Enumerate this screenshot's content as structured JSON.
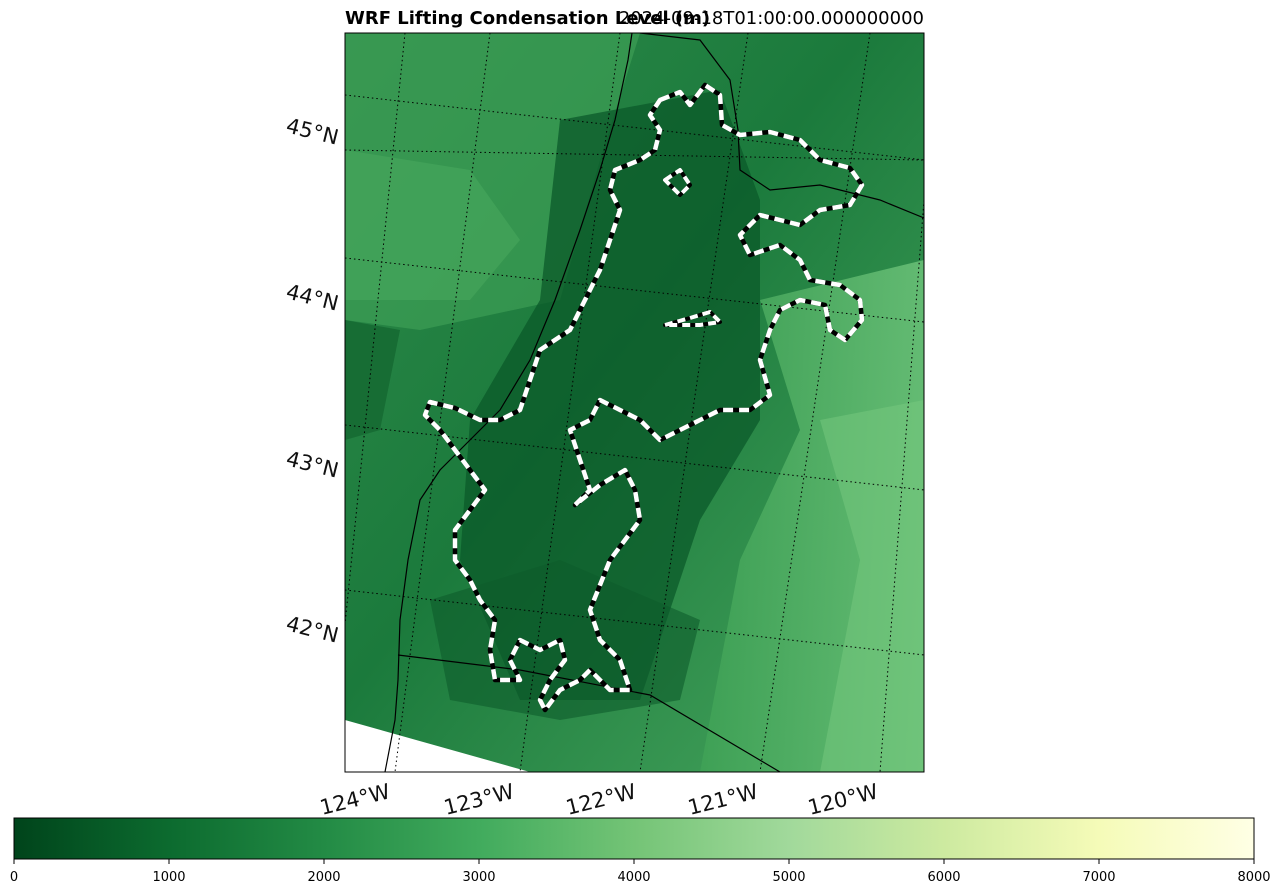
{
  "title": {
    "left": "WRF Lifting Condensation Level (m)",
    "right": "2024-09-18T01:00:00.000000000"
  },
  "map": {
    "lat_labels": [
      "45°N",
      "44°N",
      "43°N",
      "42°N"
    ],
    "lon_labels": [
      "124°W",
      "123°W",
      "122°W",
      "121°W",
      "120°W"
    ],
    "fire_perimeter_style": "black-white dashed"
  },
  "colorbar": {
    "min": 0,
    "max": 8000,
    "ticks": [
      "0",
      "1000",
      "2000",
      "3000",
      "4000",
      "5000",
      "6000",
      "7000",
      "8000"
    ],
    "colormap": "Greens_r",
    "colors": [
      "#00441b",
      "#1b7837",
      "#41ab5d",
      "#74c476",
      "#a1d99b",
      "#c7e9a8",
      "#f7fcb9",
      "#ffffe5"
    ]
  }
}
